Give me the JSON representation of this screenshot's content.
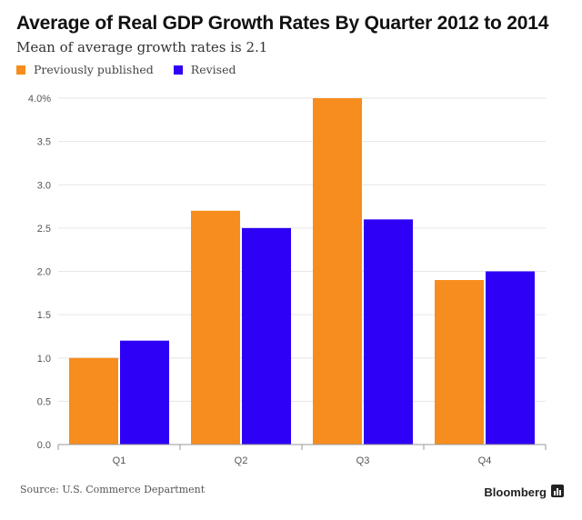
{
  "chart_data": {
    "type": "bar",
    "title": "Average of Real GDP Growth Rates By Quarter 2012 to 2014",
    "subtitle": "Mean of average growth rates is 2.1",
    "categories": [
      "Q1",
      "Q2",
      "Q3",
      "Q4"
    ],
    "series": [
      {
        "name": "Previously published",
        "color": "#F68D1E",
        "values": [
          1.0,
          2.7,
          4.0,
          1.9
        ]
      },
      {
        "name": "Revised",
        "color": "#2E00F5",
        "values": [
          1.2,
          2.5,
          2.6,
          2.0
        ]
      }
    ],
    "yticks": [
      "0.0",
      "0.5",
      "1.0",
      "1.5",
      "2.0",
      "2.5",
      "3.0",
      "3.5",
      "4.0%"
    ],
    "ylim": [
      0,
      4.0
    ],
    "grid": true,
    "legend": "top-left",
    "xlabel": "",
    "ylabel": ""
  },
  "footer": {
    "source": "Source: U.S. Commerce Department",
    "brand": "Bloomberg",
    "brand_icon": "bar-chart-icon"
  },
  "colors": {
    "grid": "#E6E6E6",
    "axis": "#999999",
    "tick_text": "#555555"
  }
}
